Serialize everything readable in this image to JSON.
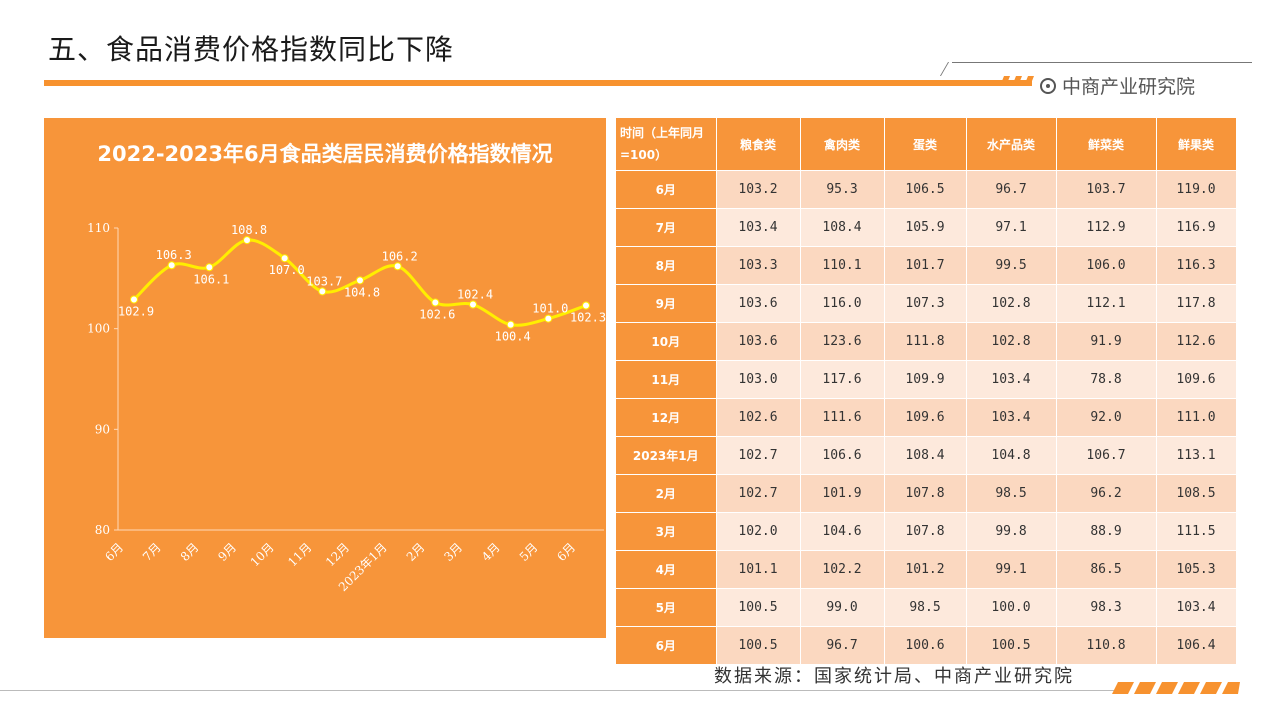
{
  "page": {
    "title": "五、食品消费价格指数同比下降",
    "brand": "中商产业研究院",
    "source": "数据来源：国家统计局、中商产业研究院"
  },
  "colors": {
    "accent": "#f7953a",
    "line": "#ffee00"
  },
  "chart_data": {
    "type": "line",
    "title": "2022-2023年6月食品类居民消费价格指数情况",
    "categories": [
      "6月",
      "7月",
      "8月",
      "9月",
      "10月",
      "11月",
      "12月",
      "2023年1月",
      "2月",
      "3月",
      "4月",
      "5月",
      "6月"
    ],
    "values": [
      102.9,
      106.3,
      106.1,
      108.8,
      107.0,
      103.7,
      104.8,
      106.2,
      102.6,
      102.4,
      100.4,
      101.0,
      102.3
    ],
    "ylim": [
      80,
      110
    ],
    "yticks": [
      80,
      90,
      100,
      110
    ]
  },
  "table": {
    "headers": [
      "时间（上年同月=100）",
      "粮食类",
      "禽肉类",
      "蛋类",
      "水产品类",
      "鲜菜类",
      "鲜果类"
    ],
    "rows": [
      [
        "6月",
        "103.2",
        "95.3",
        "106.5",
        "96.7",
        "103.7",
        "119.0"
      ],
      [
        "7月",
        "103.4",
        "108.4",
        "105.9",
        "97.1",
        "112.9",
        "116.9"
      ],
      [
        "8月",
        "103.3",
        "110.1",
        "101.7",
        "99.5",
        "106.0",
        "116.3"
      ],
      [
        "9月",
        "103.6",
        "116.0",
        "107.3",
        "102.8",
        "112.1",
        "117.8"
      ],
      [
        "10月",
        "103.6",
        "123.6",
        "111.8",
        "102.8",
        "91.9",
        "112.6"
      ],
      [
        "11月",
        "103.0",
        "117.6",
        "109.9",
        "103.4",
        "78.8",
        "109.6"
      ],
      [
        "12月",
        "102.6",
        "111.6",
        "109.6",
        "103.4",
        "92.0",
        "111.0"
      ],
      [
        "2023年1月",
        "102.7",
        "106.6",
        "108.4",
        "104.8",
        "106.7",
        "113.1"
      ],
      [
        "2月",
        "102.7",
        "101.9",
        "107.8",
        "98.5",
        "96.2",
        "108.5"
      ],
      [
        "3月",
        "102.0",
        "104.6",
        "107.8",
        "99.8",
        "88.9",
        "111.5"
      ],
      [
        "4月",
        "101.1",
        "102.2",
        "101.2",
        "99.1",
        "86.5",
        "105.3"
      ],
      [
        "5月",
        "100.5",
        "99.0",
        "98.5",
        "100.0",
        "98.3",
        "103.4"
      ],
      [
        "6月",
        "100.5",
        "96.7",
        "100.6",
        "100.5",
        "110.8",
        "106.4"
      ]
    ]
  }
}
